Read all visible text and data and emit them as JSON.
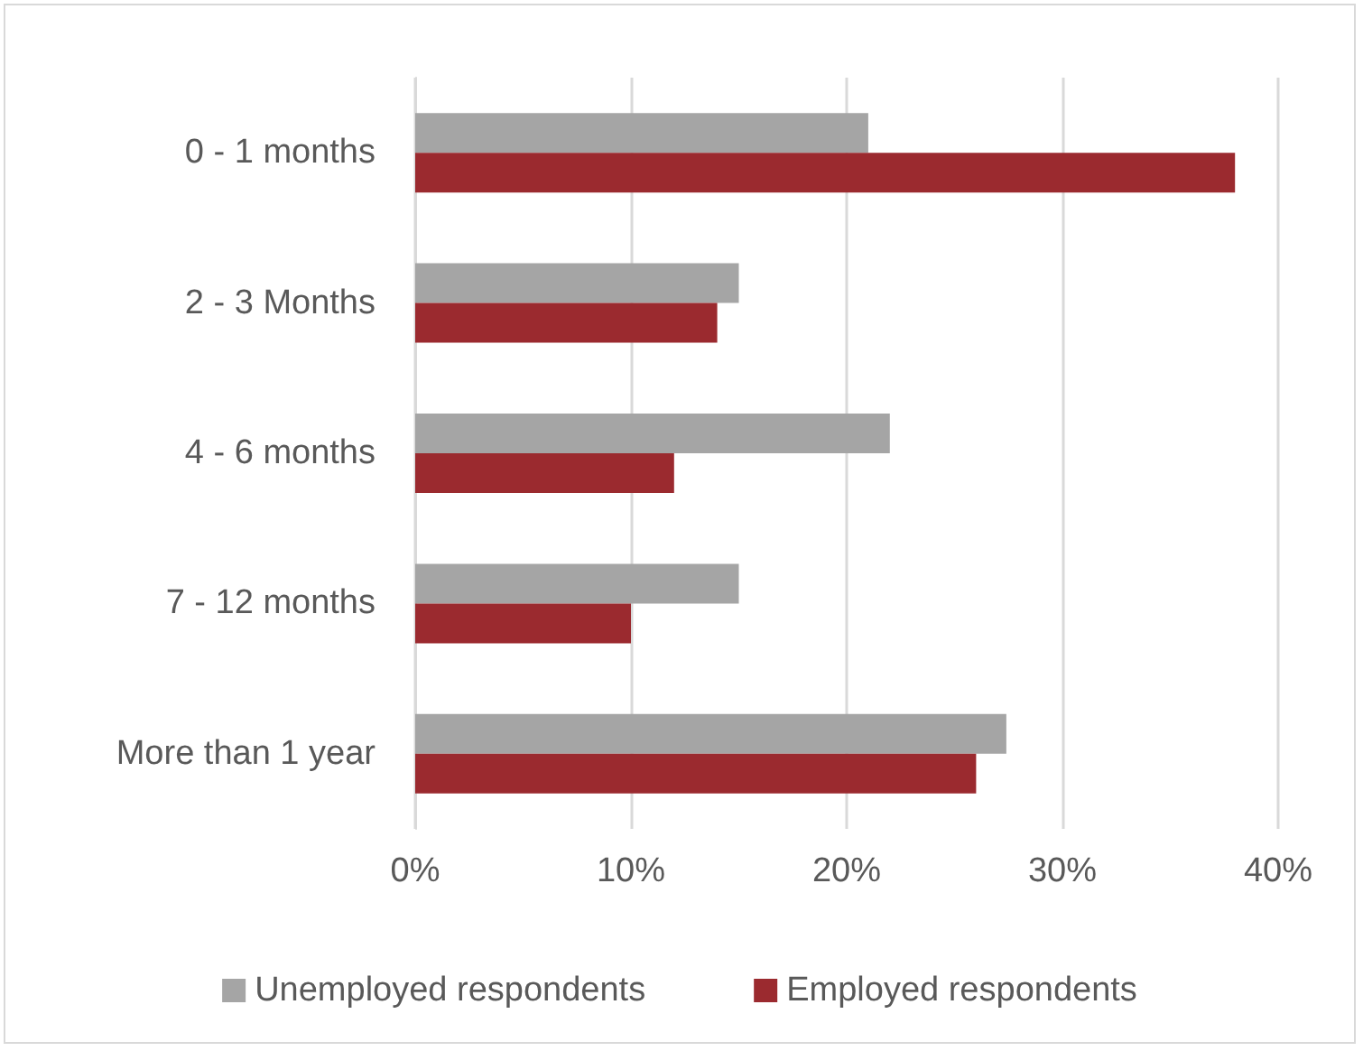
{
  "chart_data": {
    "type": "bar",
    "orientation": "horizontal",
    "categories": [
      "0 - 1 months",
      "2 - 3 Months",
      "4 - 6 months",
      "7 - 12 months",
      "More than 1 year"
    ],
    "series": [
      {
        "name": "Unemployed respondents",
        "color": "#a5a5a5",
        "values": [
          21,
          15,
          22,
          15,
          27.4
        ]
      },
      {
        "name": "Employed respondents",
        "color": "#9b2a2f",
        "values": [
          38,
          14,
          12,
          10,
          26
        ]
      }
    ],
    "xlim": [
      0,
      40
    ],
    "xticks": [
      {
        "value": 0,
        "label": "0%"
      },
      {
        "value": 10,
        "label": "10%"
      },
      {
        "value": 20,
        "label": "20%"
      },
      {
        "value": 30,
        "label": "30%"
      },
      {
        "value": 40,
        "label": "40%"
      }
    ],
    "grid": "x",
    "legend": "bottom"
  }
}
